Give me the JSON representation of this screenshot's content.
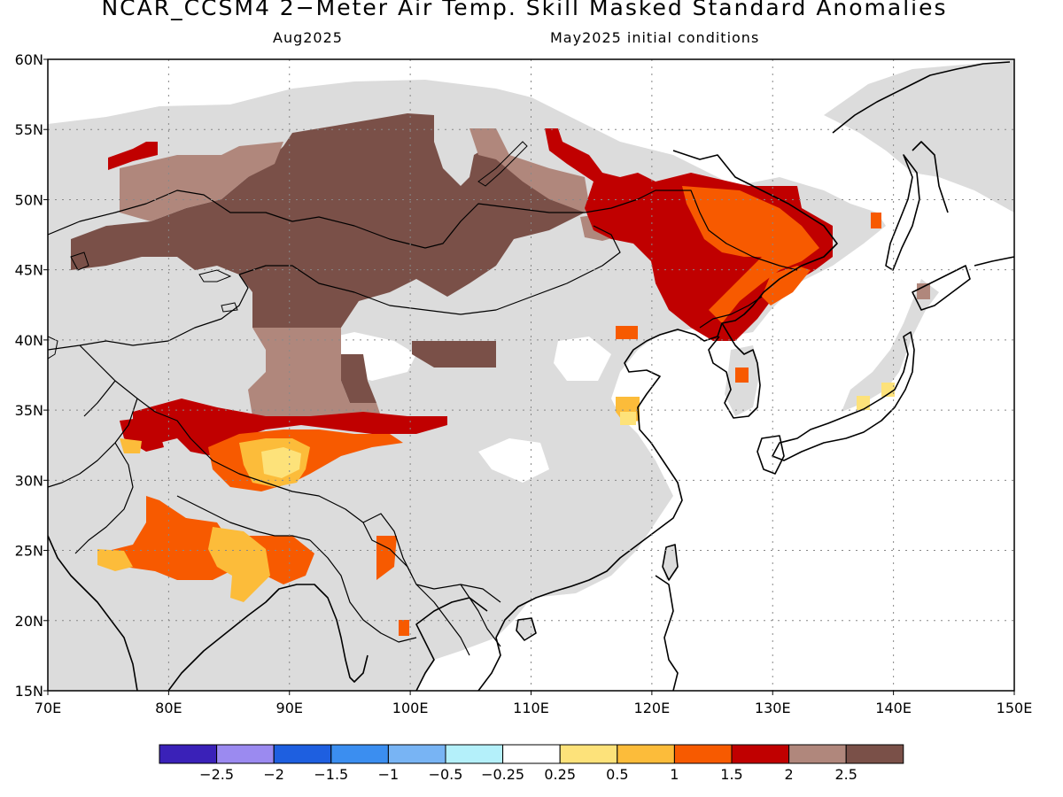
{
  "header": {
    "title": "NCAR_CCSM4 2−Meter Air Temp. Skill Masked Standard Anomalies",
    "target_month": "Aug2025",
    "initial_conditions": "May2025 initial conditions"
  },
  "map": {
    "lon_range": [
      70,
      150
    ],
    "lat_range": [
      15,
      60
    ],
    "lon_labels": [
      "70E",
      "80E",
      "90E",
      "100E",
      "110E",
      "120E",
      "130E",
      "140E",
      "150E"
    ],
    "lat_labels": [
      "15N",
      "20N",
      "25N",
      "30N",
      "35N",
      "40N",
      "45N",
      "50N",
      "55N",
      "60N"
    ],
    "masked_color": "#dcdcdc",
    "regions": [
      {
        "name": "siberia-kazakh-mongolia-warm",
        "category": "2.5",
        "color": "#7a5048"
      },
      {
        "name": "southern-siberia-belt",
        "category": "2",
        "color": "#b0877c"
      },
      {
        "name": "northeast-china",
        "category": "1.5",
        "color": "#c00000"
      },
      {
        "name": "manchuria-core",
        "category": "1",
        "color": "#f75a00"
      },
      {
        "name": "tibet-south-edge",
        "category": "1.5",
        "color": "#c00000"
      },
      {
        "name": "tibet-core",
        "category": "0.5",
        "color": "#fcbc3a"
      },
      {
        "name": "northern-india",
        "category": "1",
        "color": "#f75a00"
      },
      {
        "name": "bangladesh",
        "category": "1",
        "color": "#f75a00"
      }
    ]
  },
  "legend": {
    "colors": [
      "#3a21b8",
      "#9b8af0",
      "#1e5fe0",
      "#3b8ef0",
      "#78b4f4",
      "#b4f0fa",
      "#ffffff",
      "#fde27a",
      "#fcbc3a",
      "#f75a00",
      "#c00000",
      "#b0877c",
      "#7a5048"
    ],
    "labels": [
      "−2.5",
      "−2",
      "−1.5",
      "−1",
      "−0.5",
      "−0.25",
      "0.25",
      "0.5",
      "1",
      "1.5",
      "2",
      "2.5"
    ]
  }
}
